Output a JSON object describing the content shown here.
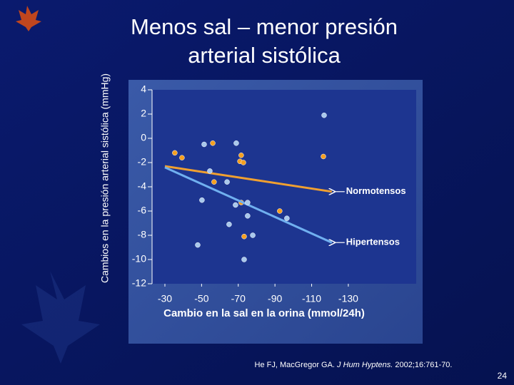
{
  "chart_data": {
    "type": "scatter",
    "title": [
      "Menos sal – menor presión",
      "arterial sistólica"
    ],
    "xlabel": "Cambio en la sal en la orina (mmol/24h)",
    "ylabel": "Cambios en la presión arterial sistólica (mmHg)",
    "xlim": [
      -23,
      -167
    ],
    "xticks": [
      -30,
      -50,
      -70,
      -90,
      -110,
      -130
    ],
    "ylim": [
      -12,
      4
    ],
    "yticks": [
      4,
      2,
      0,
      -2,
      -4,
      -6,
      -8,
      -10,
      -12
    ],
    "series": [
      {
        "name": "Normotensos",
        "color": "#f5a020",
        "x": [
          -35.4,
          -39.3,
          -56.1,
          -71.6,
          -70.9,
          -72.8,
          -56.8,
          -71.6,
          -92.6,
          -73.2,
          -116.4
        ],
        "values": [
          -1.2,
          -1.6,
          -0.4,
          -1.4,
          -1.9,
          -2.0,
          -3.6,
          -5.3,
          -6.0,
          -8.1,
          -1.5
        ],
        "fit_x": [
          -30,
          -121
        ],
        "fit_y": [
          -2.3,
          -4.4
        ],
        "fit_color": "#f0a030"
      },
      {
        "name": "Hipertensos",
        "color": "#a8c8ec",
        "x": [
          -51.4,
          -68.9,
          -54.5,
          -63.9,
          -50.2,
          -68.5,
          -75.1,
          -75.1,
          -96.5,
          -65.0,
          -77.9,
          -47.9,
          -73.2,
          -116.8
        ],
        "values": [
          -0.5,
          -0.4,
          -2.7,
          -3.6,
          -5.1,
          -5.5,
          -5.3,
          -6.4,
          -6.6,
          -7.1,
          -8.0,
          -8.8,
          -10.0,
          1.9
        ],
        "fit_x": [
          -30,
          -121
        ],
        "fit_y": [
          -2.4,
          -8.6
        ],
        "fit_color": "#70b0f0"
      }
    ]
  },
  "citation": [
    "He FJ, MacGregor GA. ",
    "J Hum Hyptens.",
    " 2002;16:761-70."
  ],
  "page_number": "24"
}
